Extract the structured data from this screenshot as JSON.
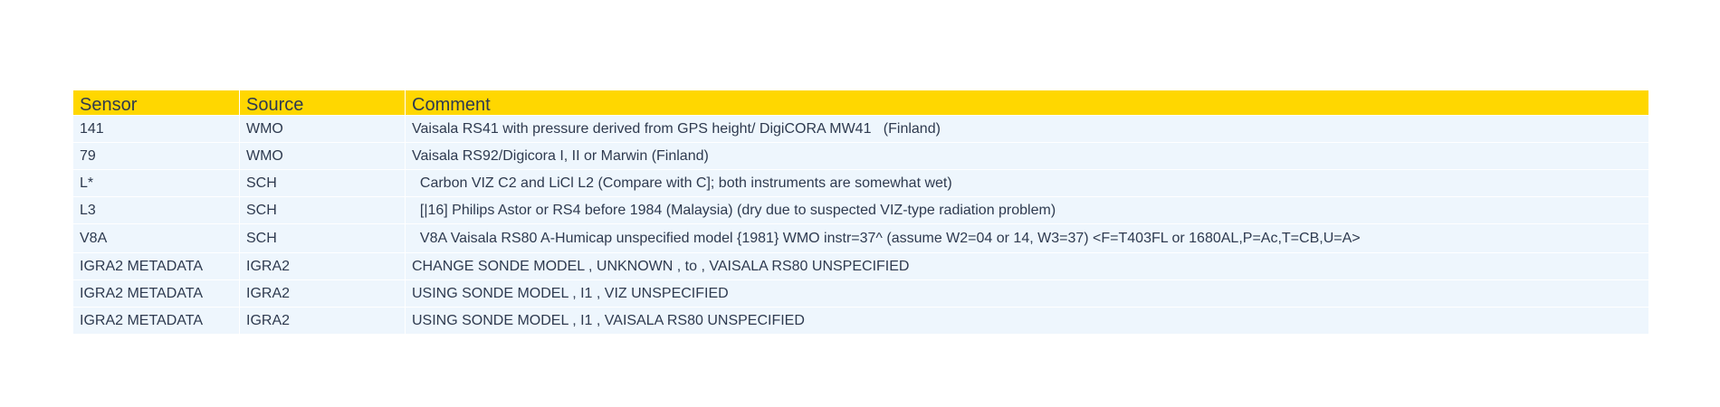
{
  "table": {
    "headers": [
      "Sensor",
      "Source",
      "Comment"
    ],
    "rows": [
      [
        "141",
        "WMO",
        "Vaisala RS41 with pressure derived from GPS height/ DigiCORA MW41   (Finland)"
      ],
      [
        "79",
        "WMO",
        "Vaisala RS92/Digicora I, II or Marwin (Finland)"
      ],
      [
        "L*",
        "SCH",
        "  Carbon VIZ C2 and LiCl L2 (Compare with C]; both instruments are somewhat wet)"
      ],
      [
        "L3",
        "SCH",
        "  [|16] Philips Astor or RS4 before 1984 (Malaysia) (dry due to suspected VIZ-type radiation problem)"
      ],
      [
        "V8A",
        "SCH",
        "  V8A Vaisala RS80 A-Humicap unspecified model {1981} WMO instr=37^ (assume W2=04 or 14, W3=37) <F=T403FL or 1680AL,P=Ac,T=CB,U=A>"
      ],
      [
        "IGRA2 METADATA",
        "IGRA2",
        "CHANGE SONDE MODEL , UNKNOWN , to , VAISALA RS80 UNSPECIFIED"
      ],
      [
        "IGRA2 METADATA",
        "IGRA2",
        "USING SONDE MODEL , I1 , VIZ UNSPECIFIED"
      ],
      [
        "IGRA2 METADATA",
        "IGRA2",
        "USING SONDE MODEL , I1 , VAISALA RS80 UNSPECIFIED"
      ]
    ]
  },
  "colors": {
    "header_bg": "#ffd700",
    "row_bg": "#eef6fd",
    "text": "#2e3a4f"
  }
}
